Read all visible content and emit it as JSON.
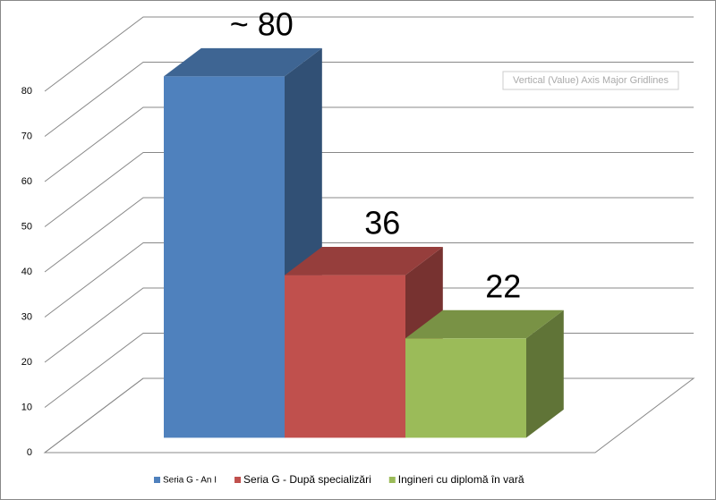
{
  "chart_data": {
    "type": "bar3d",
    "series": [
      {
        "name": "Seria G - An I",
        "color": "#4f81bd",
        "values": [
          80
        ],
        "value_labels": [
          "~ 80"
        ]
      },
      {
        "name": "Seria G - După specializări",
        "color": "#c0504d",
        "values": [
          36
        ]
      },
      {
        "name": "Ingineri cu diplomă în vară",
        "color": "#9bbb59",
        "values": [
          22
        ]
      }
    ],
    "ylim": [
      0,
      80
    ],
    "yticks": [
      0,
      10,
      20,
      30,
      40,
      50,
      60,
      70,
      80
    ],
    "grid": true,
    "legend": "bottom",
    "tooltip": "Vertical (Value) Axis Major Gridlines"
  }
}
